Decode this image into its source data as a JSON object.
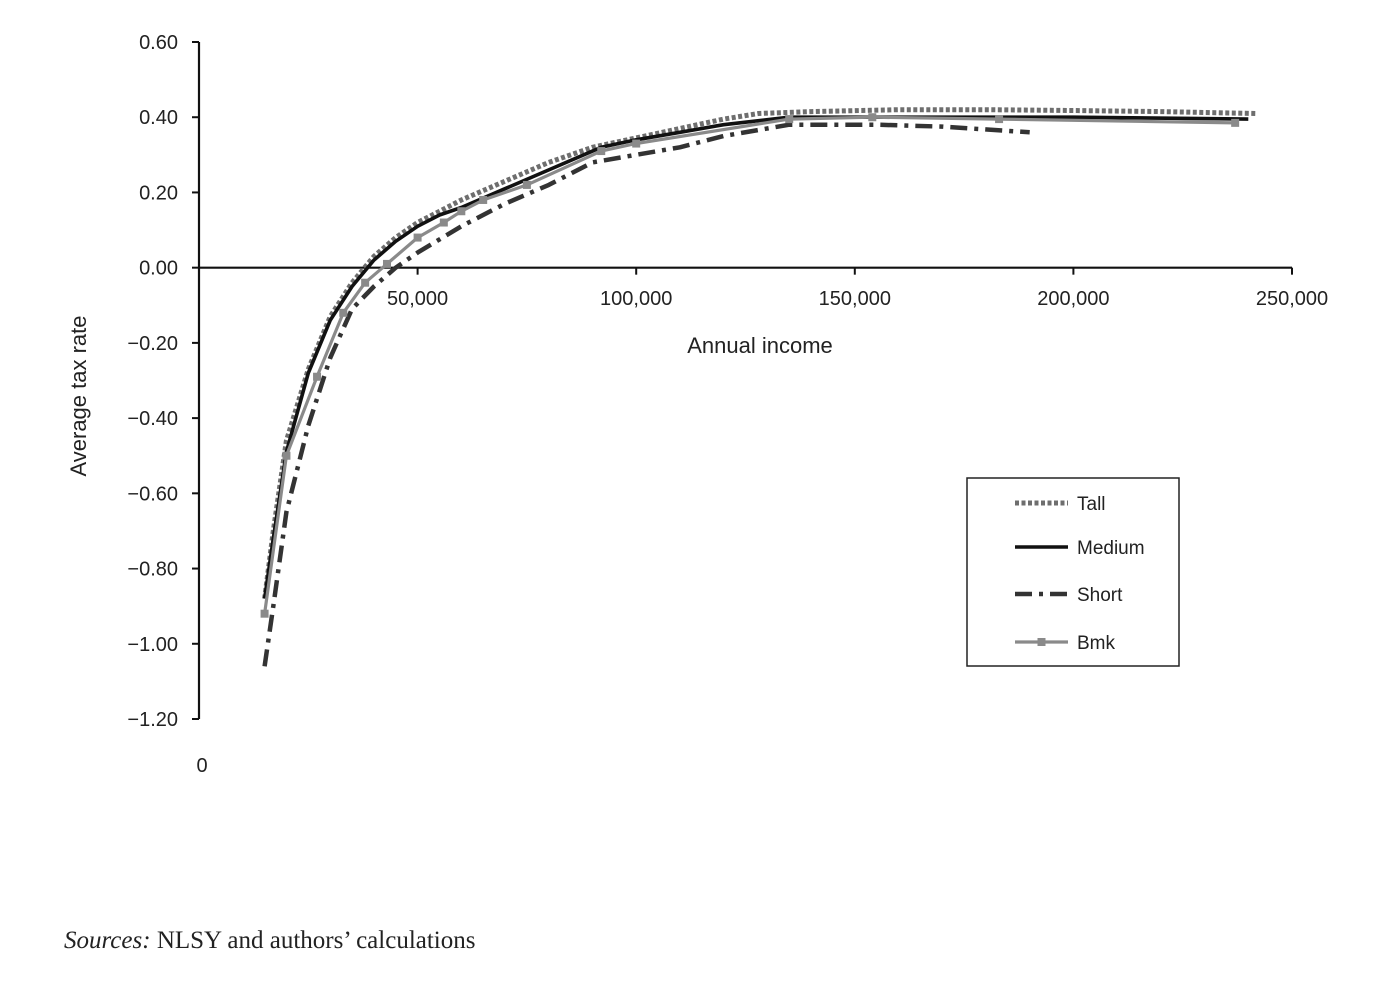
{
  "chart_data": {
    "type": "line",
    "title": "",
    "xlabel": "Annual income",
    "ylabel": "Average tax rate",
    "xlim": [
      0,
      250000
    ],
    "ylim": [
      -1.2,
      0.6
    ],
    "x_origin_label": "0",
    "x_ticks": [
      {
        "value": 50000,
        "label": "50,000"
      },
      {
        "value": 100000,
        "label": "100,000"
      },
      {
        "value": 150000,
        "label": "150,000"
      },
      {
        "value": 200000,
        "label": "200,000"
      },
      {
        "value": 250000,
        "label": "250,000"
      }
    ],
    "y_ticks": [
      {
        "value": 0.6,
        "label": "0.60"
      },
      {
        "value": 0.4,
        "label": "0.40"
      },
      {
        "value": 0.2,
        "label": "0.20"
      },
      {
        "value": 0.0,
        "label": "0.00"
      },
      {
        "value": -0.2,
        "label": "−0.20"
      },
      {
        "value": -0.4,
        "label": "−0.40"
      },
      {
        "value": -0.6,
        "label": "−0.60"
      },
      {
        "value": -0.8,
        "label": "−0.80"
      },
      {
        "value": -1.0,
        "label": "−1.00"
      },
      {
        "value": -1.2,
        "label": "−1.20"
      }
    ],
    "grid": false,
    "legend_position": "right",
    "series": [
      {
        "name": "Tall",
        "style": "dotted",
        "color": "#6e6e6e",
        "points": [
          [
            15000,
            -0.88
          ],
          [
            17000,
            -0.7
          ],
          [
            20000,
            -0.46
          ],
          [
            25000,
            -0.27
          ],
          [
            30000,
            -0.13
          ],
          [
            35000,
            -0.04
          ],
          [
            40000,
            0.03
          ],
          [
            45000,
            0.08
          ],
          [
            50000,
            0.12
          ],
          [
            55000,
            0.15
          ],
          [
            60000,
            0.18
          ],
          [
            70000,
            0.23
          ],
          [
            80000,
            0.28
          ],
          [
            90000,
            0.32
          ],
          [
            100000,
            0.345
          ],
          [
            110000,
            0.37
          ],
          [
            120000,
            0.395
          ],
          [
            128000,
            0.41
          ],
          [
            140000,
            0.415
          ],
          [
            160000,
            0.42
          ],
          [
            180000,
            0.42
          ],
          [
            200000,
            0.418
          ],
          [
            220000,
            0.415
          ],
          [
            242000,
            0.41
          ]
        ]
      },
      {
        "name": "Medium",
        "style": "solid",
        "color": "#111111",
        "points": [
          [
            15000,
            -0.88
          ],
          [
            17000,
            -0.72
          ],
          [
            20000,
            -0.49
          ],
          [
            25000,
            -0.28
          ],
          [
            30000,
            -0.14
          ],
          [
            35000,
            -0.05
          ],
          [
            40000,
            0.02
          ],
          [
            45000,
            0.07
          ],
          [
            50000,
            0.11
          ],
          [
            55000,
            0.14
          ],
          [
            60000,
            0.16
          ],
          [
            70000,
            0.21
          ],
          [
            80000,
            0.26
          ],
          [
            92000,
            0.32
          ],
          [
            100000,
            0.34
          ],
          [
            110000,
            0.36
          ],
          [
            120000,
            0.38
          ],
          [
            135000,
            0.4
          ],
          [
            160000,
            0.4
          ],
          [
            200000,
            0.4
          ],
          [
            240000,
            0.395
          ]
        ]
      },
      {
        "name": "Short",
        "style": "dashdot",
        "color": "#333333",
        "points": [
          [
            15000,
            -1.06
          ],
          [
            17000,
            -0.9
          ],
          [
            20000,
            -0.65
          ],
          [
            25000,
            -0.42
          ],
          [
            30000,
            -0.24
          ],
          [
            35000,
            -0.11
          ],
          [
            40000,
            -0.05
          ],
          [
            45000,
            0.0
          ],
          [
            50000,
            0.04
          ],
          [
            60000,
            0.11
          ],
          [
            70000,
            0.17
          ],
          [
            80000,
            0.22
          ],
          [
            90000,
            0.28
          ],
          [
            100000,
            0.3
          ],
          [
            110000,
            0.32
          ],
          [
            120000,
            0.35
          ],
          [
            135000,
            0.38
          ],
          [
            155000,
            0.38
          ],
          [
            170000,
            0.375
          ],
          [
            190000,
            0.36
          ]
        ]
      },
      {
        "name": "Bmk",
        "style": "marker",
        "color": "#8a8a8a",
        "points": [
          [
            15000,
            -0.92
          ],
          [
            20000,
            -0.5
          ],
          [
            27000,
            -0.29
          ],
          [
            33000,
            -0.12
          ],
          [
            38000,
            -0.04
          ],
          [
            43000,
            0.01
          ],
          [
            50000,
            0.08
          ],
          [
            56000,
            0.12
          ],
          [
            60000,
            0.15
          ],
          [
            65000,
            0.18
          ],
          [
            75000,
            0.22
          ],
          [
            92000,
            0.31
          ],
          [
            100000,
            0.33
          ],
          [
            135000,
            0.395
          ],
          [
            154000,
            0.4
          ],
          [
            183000,
            0.395
          ],
          [
            237000,
            0.385
          ]
        ]
      }
    ],
    "source_label": "Sources:",
    "source_text": " NLSY and authors’ calculations"
  }
}
